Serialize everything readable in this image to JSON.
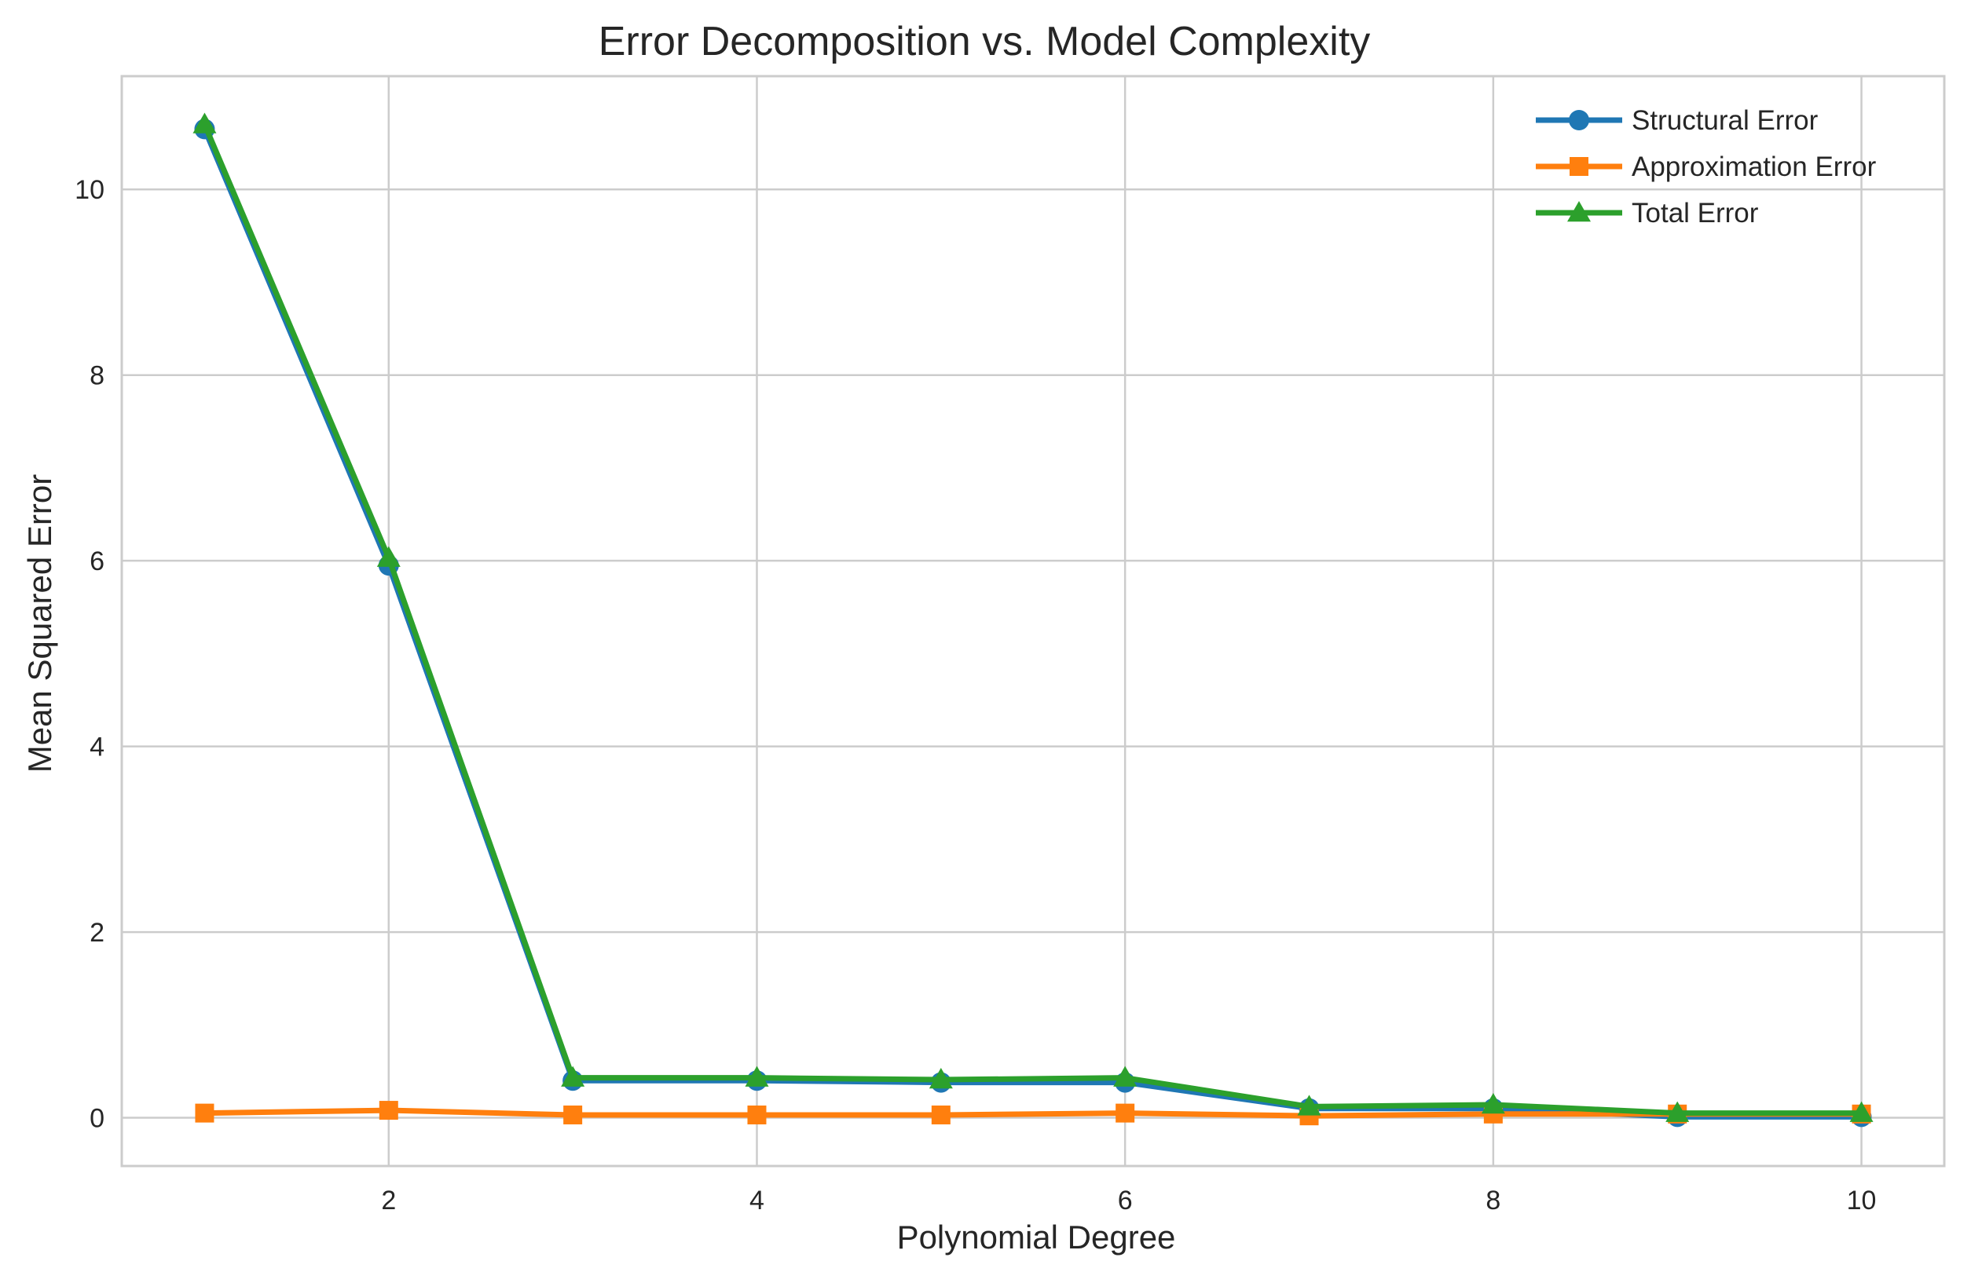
{
  "chart_data": {
    "type": "line",
    "title": "Error Decomposition vs. Model Complexity",
    "xlabel": "Polynomial Degree",
    "ylabel": "Mean Squared Error",
    "x": [
      1,
      2,
      3,
      4,
      5,
      6,
      7,
      8,
      9,
      10
    ],
    "xlim": [
      0.55,
      10.45
    ],
    "ylim": [
      -0.52,
      11.22
    ],
    "xticks": [
      2,
      4,
      6,
      8,
      10
    ],
    "yticks": [
      0,
      2,
      4,
      6,
      8,
      10
    ],
    "grid": true,
    "legend_position": "top-right",
    "series": [
      {
        "name": "Structural Error",
        "color": "#1f77b4",
        "marker": "circle",
        "values": [
          10.65,
          5.95,
          0.4,
          0.4,
          0.38,
          0.38,
          0.1,
          0.1,
          0.01,
          0.01
        ]
      },
      {
        "name": "Approximation Error",
        "color": "#ff7f0e",
        "marker": "square",
        "values": [
          0.05,
          0.08,
          0.03,
          0.03,
          0.03,
          0.05,
          0.02,
          0.04,
          0.04,
          0.04
        ]
      },
      {
        "name": "Total Error",
        "color": "#2ca02c",
        "marker": "triangle",
        "values": [
          10.7,
          6.03,
          0.43,
          0.43,
          0.41,
          0.43,
          0.12,
          0.14,
          0.05,
          0.05
        ]
      }
    ]
  }
}
